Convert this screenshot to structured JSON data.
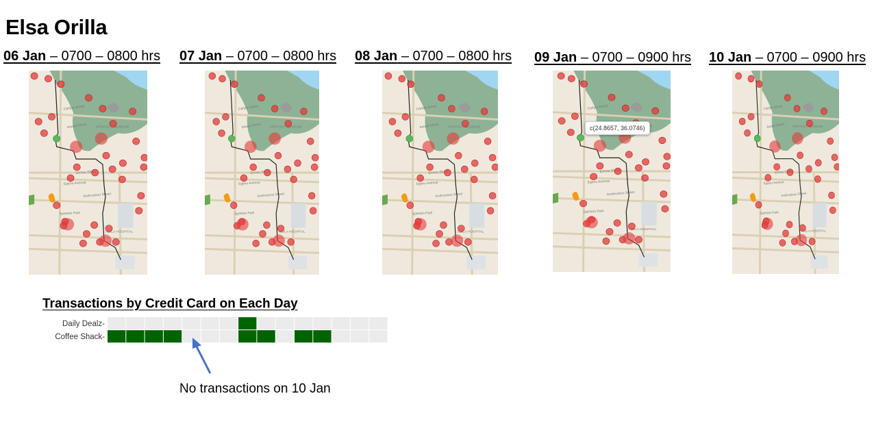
{
  "person_name": "Elsa Orilla",
  "days": [
    {
      "date": "06 Jan",
      "rest": " – 0700 – 0800 hrs",
      "variant": 0
    },
    {
      "date": "07 Jan",
      "rest": " – 0700 – 0800 hrs",
      "variant": 1
    },
    {
      "date": "08 Jan",
      "rest": " – 0700 – 0800 hrs",
      "variant": 2
    },
    {
      "date": "09 Jan",
      "rest": " – 0700 – 0900 hrs",
      "variant": 3
    },
    {
      "date": "10 Jan",
      "rest": " – 0700 – 0900 hrs",
      "variant": 4
    }
  ],
  "map": {
    "labels": [
      "Carlyle Street",
      "Arkadi Street",
      "Ermou Street",
      "Egeou Avenue",
      "ABILA HOSPITAL",
      "ARTIFACT MUSEUM",
      "Androutsou Street",
      "Spetson Park"
    ],
    "tooltip": "c(24.8657, 36.0746)",
    "colors": {
      "land": "#efe9dd",
      "park": "#7da888",
      "water": "#9fd6f2",
      "road": "#dbcfb3",
      "point": "#e23b3b",
      "start_point": "#5cb85c",
      "route": "#222222"
    }
  },
  "chart_data": {
    "type": "heatmap",
    "title": "Transactions by Credit Card on Each Day",
    "rows": [
      "Daily Dealz",
      "Coffee Shack"
    ],
    "columns": 15,
    "cells": {
      "Daily Dealz": [
        0,
        0,
        0,
        0,
        0,
        0,
        0,
        1,
        0,
        0,
        0,
        0,
        0,
        0,
        0
      ],
      "Coffee Shack": [
        1,
        1,
        1,
        1,
        0,
        0,
        0,
        1,
        1,
        0,
        1,
        1,
        0,
        0,
        0
      ]
    },
    "colors": {
      "filled": "#006400",
      "empty": "#ebebeb"
    }
  },
  "annotation": "No transactions on 10 Jan"
}
